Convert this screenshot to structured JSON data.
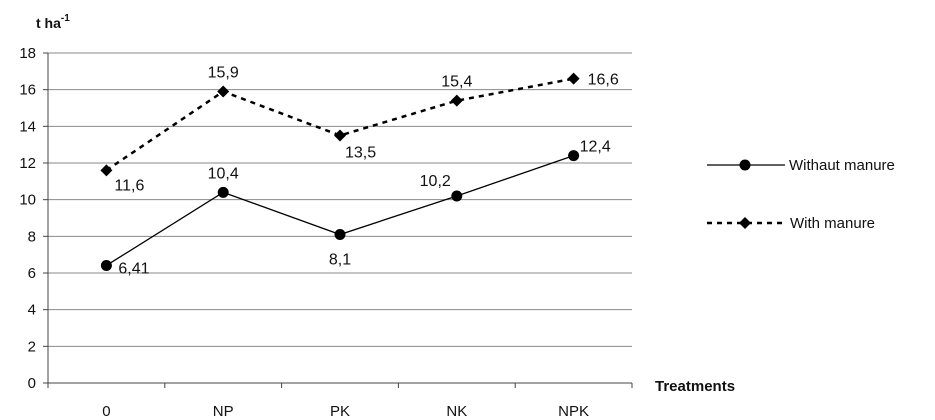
{
  "chart_data": {
    "type": "line",
    "ylabel": "t ha",
    "ylabel_sup": "-1",
    "xlabel": "Treatments",
    "categories": [
      "0",
      "NP",
      "PK",
      "NK",
      "NPK"
    ],
    "ylim": [
      0,
      18
    ],
    "yticks": [
      0,
      2,
      4,
      6,
      8,
      10,
      12,
      14,
      16,
      18
    ],
    "grid": true,
    "legend_position": "right",
    "series": [
      {
        "name": "Withaut manure",
        "values": [
          6.41,
          10.4,
          8.1,
          10.2,
          12.4
        ],
        "labels": [
          "6,41",
          "10,4",
          "8,1",
          "10,2",
          "12,4"
        ],
        "line_style": "solid",
        "marker": "circle",
        "color": "#000000"
      },
      {
        "name": "With manure",
        "values": [
          11.6,
          15.9,
          13.5,
          15.4,
          16.6
        ],
        "labels": [
          "11,6",
          "15,9",
          "13,5",
          "15,4",
          "16,6"
        ],
        "line_style": "dashed",
        "marker": "diamond",
        "color": "#000000"
      }
    ]
  }
}
